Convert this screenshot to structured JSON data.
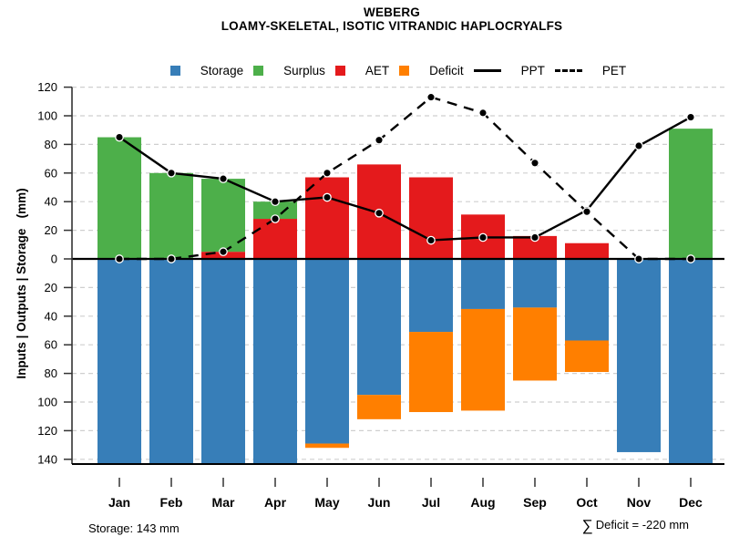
{
  "title": {
    "line1": "WEBERG",
    "line2": "LOAMY-SKELETAL, ISOTIC VITRANDIC HAPLOCRYALFS"
  },
  "legend": [
    {
      "id": "storage",
      "label": "Storage",
      "swatch": "square",
      "color": "#377EB8"
    },
    {
      "id": "surplus",
      "label": "Surplus",
      "swatch": "square",
      "color": "#4DAF4A"
    },
    {
      "id": "aet",
      "label": "AET",
      "swatch": "square",
      "color": "#E41A1C"
    },
    {
      "id": "deficit",
      "label": "Deficit",
      "swatch": "square",
      "color": "#FF7F00"
    },
    {
      "id": "ppt",
      "label": "PPT",
      "swatch": "line-solid",
      "color": "#000000"
    },
    {
      "id": "pet",
      "label": "PET",
      "swatch": "line-dashed",
      "color": "#000000"
    }
  ],
  "y_axis": {
    "label": "Inputs | Outputs | Storage   (mm)",
    "ticks": [
      {
        "v": 120,
        "label": "120"
      },
      {
        "v": 100,
        "label": "100"
      },
      {
        "v": 80,
        "label": "80"
      },
      {
        "v": 60,
        "label": "60"
      },
      {
        "v": 40,
        "label": "40"
      },
      {
        "v": 20,
        "label": "20"
      },
      {
        "v": 0,
        "label": "0"
      },
      {
        "v": -20,
        "label": "20"
      },
      {
        "v": -40,
        "label": "40"
      },
      {
        "v": -60,
        "label": "60"
      },
      {
        "v": -80,
        "label": "80"
      },
      {
        "v": -100,
        "label": "100"
      },
      {
        "v": -120,
        "label": "120"
      },
      {
        "v": -140,
        "label": "140"
      }
    ]
  },
  "footer": {
    "storage_note": "Storage: 143 mm",
    "sigma": "∑",
    "deficit_note": "Deficit = -220 mm"
  },
  "chart_data": {
    "type": "bar",
    "title": "WEBERG",
    "subtitle": "LOAMY-SKELETAL, ISOTIC VITRANDIC HAPLOCRYALFS",
    "ylabel": "Inputs | Outputs | Storage (mm)",
    "categories": [
      "Jan",
      "Feb",
      "Mar",
      "Apr",
      "May",
      "Jun",
      "Jul",
      "Aug",
      "Sep",
      "Oct",
      "Nov",
      "Dec"
    ],
    "ylim_above": [
      0,
      120
    ],
    "ylim_below": [
      0,
      140
    ],
    "grid": true,
    "legend_position": "top",
    "bars": [
      {
        "name": "AET",
        "color": "#E41A1C",
        "direction": "up",
        "stack_order": 0,
        "values": [
          0,
          0,
          5,
          28,
          57,
          66,
          57,
          31,
          16,
          11,
          0,
          0
        ]
      },
      {
        "name": "Surplus",
        "color": "#4DAF4A",
        "direction": "up",
        "stack_order": 1,
        "values": [
          85,
          60,
          51,
          12,
          0,
          0,
          0,
          0,
          0,
          0,
          0,
          91
        ]
      },
      {
        "name": "Storage",
        "color": "#377EB8",
        "direction": "down",
        "stack_order": 0,
        "values": [
          143,
          143,
          143,
          143,
          129,
          95,
          51,
          35,
          34,
          57,
          135,
          143
        ]
      },
      {
        "name": "Deficit",
        "color": "#FF7F00",
        "direction": "down",
        "stack_order": 1,
        "values": [
          0,
          0,
          0,
          0,
          3,
          17,
          56,
          71,
          51,
          22,
          0,
          0
        ]
      }
    ],
    "lines": [
      {
        "name": "PPT",
        "style": "solid",
        "color": "#000000",
        "values": [
          85,
          60,
          56,
          40,
          43,
          32,
          13,
          15,
          15,
          34,
          79,
          99
        ]
      },
      {
        "name": "PET",
        "style": "dashed",
        "color": "#000000",
        "values": [
          0,
          0,
          5,
          28,
          60,
          83,
          113,
          102,
          67,
          33,
          0,
          0
        ]
      }
    ],
    "annotations": {
      "storage_max": "Storage: 143 mm",
      "total_deficit": "-220 mm"
    }
  }
}
